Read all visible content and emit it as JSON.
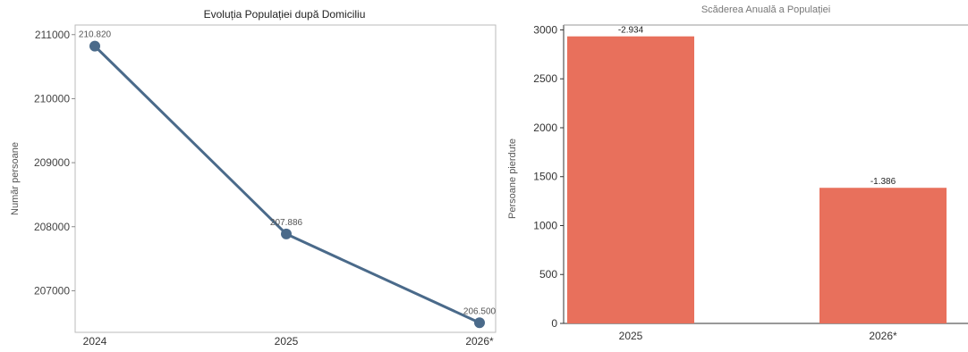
{
  "chart_data": [
    {
      "type": "line",
      "title": "Evoluția Populației după Domiciliu",
      "xlabel": "",
      "ylabel": "Număr persoane",
      "categories": [
        "2024",
        "2025",
        "2026*"
      ],
      "series": [
        {
          "values": [
            210820,
            207886,
            206500
          ],
          "labels": [
            "210.820",
            "207.886",
            "206.500"
          ],
          "color": "#4a6a8a"
        }
      ],
      "yticks": [
        207000,
        208000,
        209000,
        210000,
        211000
      ],
      "ylim": [
        206350,
        211150
      ],
      "grid": false
    },
    {
      "type": "bar",
      "title": "Scăderea Anuală a Populației",
      "xlabel": "",
      "ylabel": "Persoane pierdute",
      "categories": [
        "2025",
        "2026*"
      ],
      "values": [
        2934,
        1386
      ],
      "labels": [
        "-2.934",
        "-1.386"
      ],
      "color": "#e8705c",
      "yticks": [
        0,
        500,
        1000,
        1500,
        2000,
        2500,
        3000
      ],
      "ylim": [
        0,
        3050
      ],
      "grid": false
    }
  ]
}
